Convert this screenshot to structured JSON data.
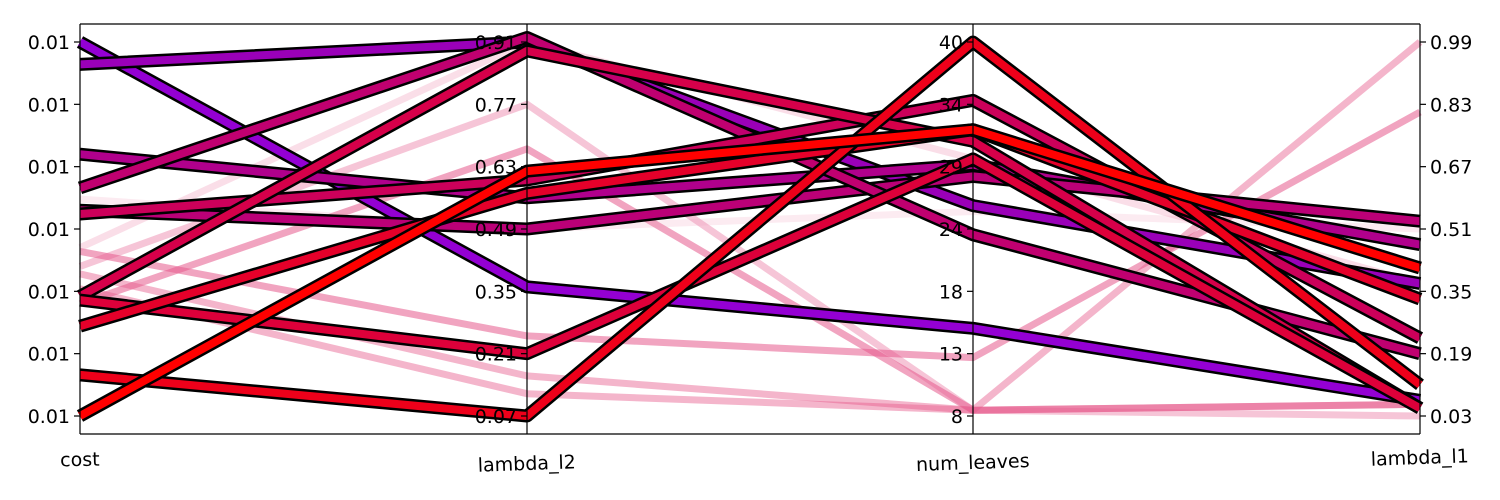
{
  "chart_data": {
    "type": "parallel_coordinates",
    "axes": [
      {
        "name": "cost",
        "ticks": [
          "0.01",
          "0.01",
          "0.01",
          "0.01",
          "0.01",
          "0.01",
          "0.01"
        ],
        "range": [
          0,
          1
        ]
      },
      {
        "name": "lambda_l2",
        "ticks": [
          "0.07",
          "0.21",
          "0.35",
          "0.49",
          "0.63",
          "0.77",
          "0.91"
        ],
        "range": [
          0.07,
          0.91
        ]
      },
      {
        "name": "num_leaves",
        "ticks": [
          "8",
          "13",
          "18",
          "24",
          "29",
          "34",
          "40"
        ],
        "range": [
          8,
          40
        ]
      },
      {
        "name": "lambda_l1",
        "ticks": [
          "0.03",
          "0.19",
          "0.35",
          "0.51",
          "0.67",
          "0.83",
          "0.99"
        ],
        "range": [
          0.03,
          0.99
        ]
      }
    ],
    "series_good": [
      {
        "color": "#9400d3",
        "values": [
          1.0,
          0.36,
          15.5,
          0.07
        ]
      },
      {
        "color": "#9a00b8",
        "values": [
          0.94,
          0.91,
          26.0,
          0.37
        ]
      },
      {
        "color": "#b0008c",
        "values": [
          0.7,
          0.56,
          29.5,
          0.47
        ]
      },
      {
        "color": "#bb0077",
        "values": [
          0.55,
          0.49,
          28.5,
          0.53
        ]
      },
      {
        "color": "#c00070",
        "values": [
          0.61,
          0.92,
          23.5,
          0.19
        ]
      },
      {
        "color": "#cc005a",
        "values": [
          0.54,
          0.6,
          35.0,
          0.23
        ]
      },
      {
        "color": "#d6004a",
        "values": [
          0.32,
          0.89,
          31.5,
          0.05
        ]
      },
      {
        "color": "#dd003a",
        "values": [
          0.31,
          0.21,
          30.0,
          0.05
        ]
      },
      {
        "color": "#e5002a",
        "values": [
          0.24,
          0.57,
          32.5,
          0.33
        ]
      },
      {
        "color": "#ee001a",
        "values": [
          0.11,
          0.07,
          40.0,
          0.11
        ]
      },
      {
        "color": "#ff0000",
        "values": [
          0.0,
          0.62,
          32.5,
          0.41
        ]
      }
    ],
    "series_faded": [
      {
        "color": "#e65a8c",
        "opacity": 0.55,
        "values": [
          0.3,
          0.67,
          8.5,
          0.06
        ]
      },
      {
        "color": "#e65a8c",
        "opacity": 0.55,
        "values": [
          0.44,
          0.25,
          13.0,
          0.81
        ]
      },
      {
        "color": "#e65a8c",
        "opacity": 0.35,
        "values": [
          0.4,
          0.77,
          8.5,
          0.03
        ]
      },
      {
        "color": "#e65a8c",
        "opacity": 0.45,
        "values": [
          0.38,
          0.16,
          8.5,
          0.99
        ]
      },
      {
        "color": "#e65a8c",
        "opacity": 0.45,
        "values": [
          0.34,
          0.12,
          8.5,
          0.06
        ]
      },
      {
        "color": "#ec7aa4",
        "opacity": 0.25,
        "values": [
          0.45,
          0.91,
          30.0,
          0.37
        ]
      },
      {
        "color": "#f09ab8",
        "opacity": 0.2,
        "values": [
          0.58,
          0.49,
          25.5,
          0.51
        ]
      }
    ]
  }
}
